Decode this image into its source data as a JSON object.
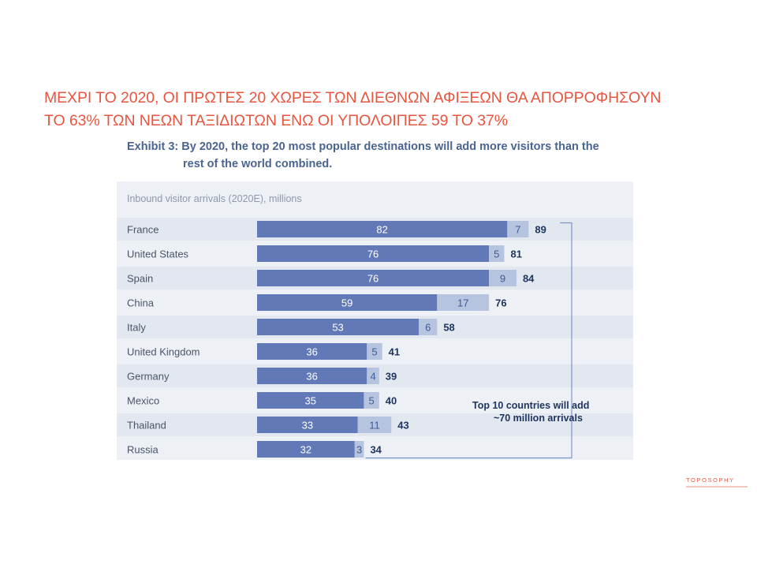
{
  "headline": {
    "line1": "ΜΕΧΡΙ ΤΟ 2020, ΟΙ ΠΡΩΤΕΣ 20 ΧΩΡΕΣ ΤΩΝ ΔΙΕΘΝΩΝ ΑΦΙΞΕΩΝ ΘΑ ΑΠΟΡΡΟΦΗΣΟΥΝ",
    "line2": "ΤΟ 63% ΤΩΝ ΝΕΩΝ ΤΑΞΙΔΙΩΤΩΝ ΕΝΩ ΟΙ ΥΠΟΛΟΙΠΕΣ 59 ΤΟ 37%"
  },
  "exhibit": {
    "line1": "Exhibit 3: By 2020, the top 20 most popular destinations will add more visitors than the",
    "line2": "rest of the world combined."
  },
  "logo": {
    "name": "TOPOSOPHY"
  },
  "colors": {
    "accent": "#e8553e",
    "bar_base": "#6179b6",
    "bar_added": "#b6c4df",
    "panel": "#edf0f5",
    "text_dark": "#1e3560",
    "text_muted": "#8f98aa"
  },
  "chart_data": {
    "type": "bar",
    "orientation": "horizontal",
    "stacked": true,
    "title": "Inbound visitor arrivals (2020E), millions",
    "categories": [
      "France",
      "United States",
      "Spain",
      "China",
      "Italy",
      "United Kingdom",
      "Germany",
      "Mexico",
      "Thailand",
      "Russia"
    ],
    "series": [
      {
        "values": [
          82,
          76,
          76,
          59,
          53,
          36,
          36,
          35,
          33,
          32
        ]
      },
      {
        "values": [
          7,
          5,
          9,
          17,
          6,
          5,
          4,
          5,
          11,
          3
        ]
      }
    ],
    "totals": [
      89,
      81,
      84,
      76,
      58,
      41,
      39,
      40,
      43,
      34
    ],
    "xlim": [
      0,
      100
    ],
    "grid": false,
    "annotation": {
      "line1": "Top 10 countries will add",
      "line2": "~70 million arrivals"
    }
  }
}
